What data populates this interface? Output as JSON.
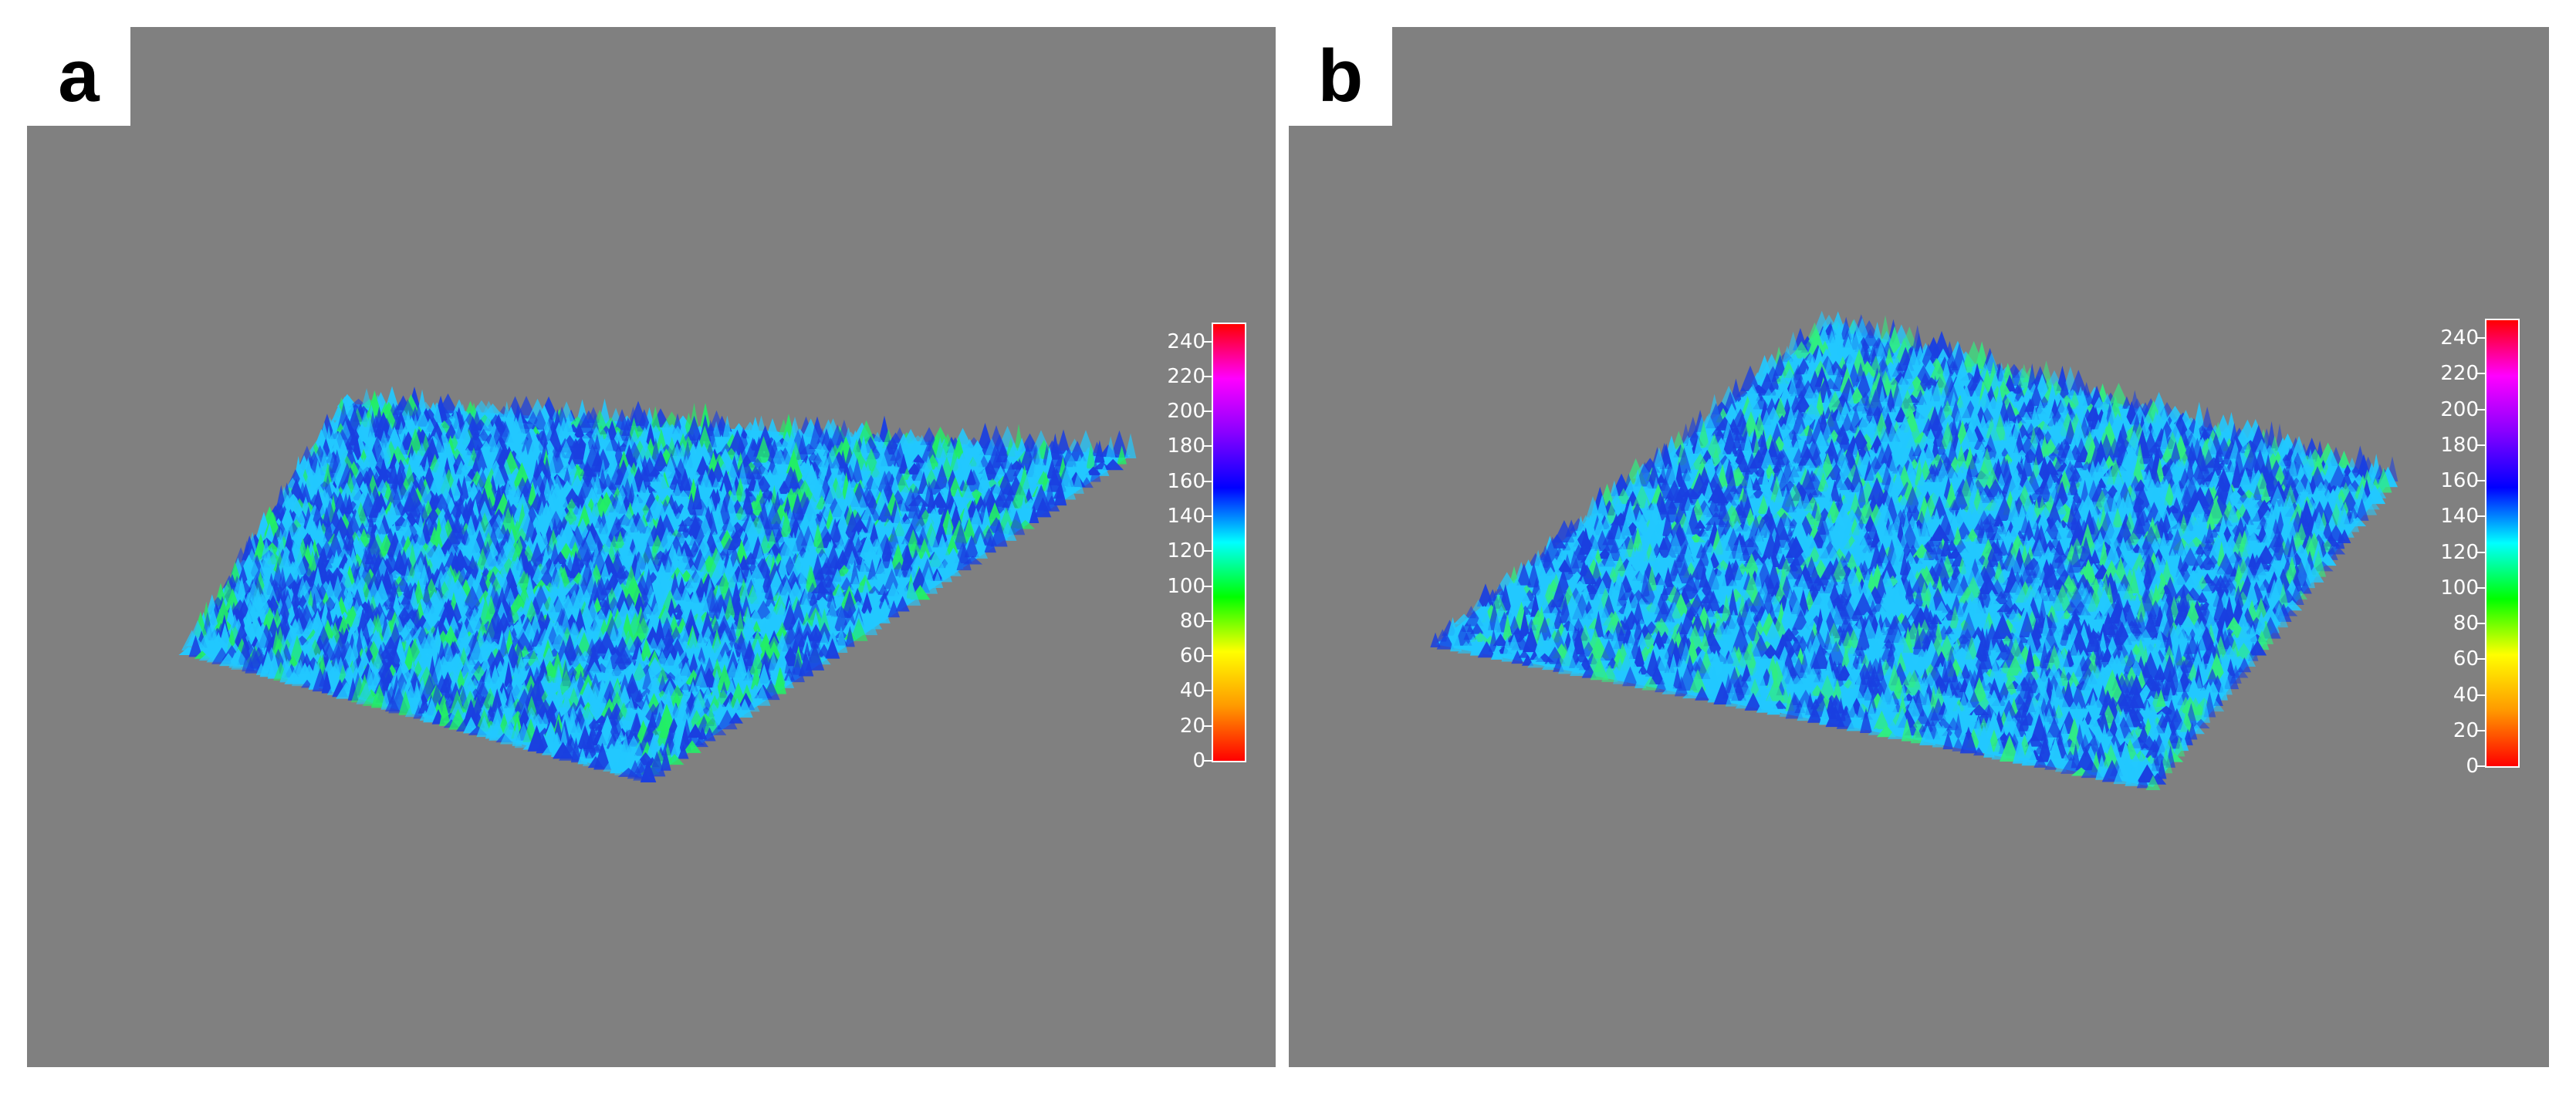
{
  "panels": [
    {
      "label": "a",
      "chart_data": {
        "type": "heatmap",
        "render": "3d-surface",
        "colorbar": {
          "min": 0,
          "max": 250,
          "ticks": [
            "0",
            "20",
            "40",
            "60",
            "80",
            "100",
            "120",
            "140",
            "160",
            "180",
            "200",
            "220",
            "240"
          ],
          "stops": [
            "#ff0000",
            "#ff9900",
            "#ffff00",
            "#00ff00",
            "#00ffff",
            "#0000ff",
            "#8800ff",
            "#ff00ff",
            "#ff0000"
          ]
        },
        "surface_colors": {
          "high": "#1a3fe0",
          "mid": "#22c8ff",
          "low": "#22ee66"
        },
        "dominant_range": [
          80,
          170
        ]
      }
    },
    {
      "label": "b",
      "chart_data": {
        "type": "heatmap",
        "render": "3d-surface",
        "colorbar": {
          "min": 0,
          "max": 250,
          "ticks": [
            "0",
            "20",
            "40",
            "60",
            "80",
            "100",
            "120",
            "140",
            "160",
            "180",
            "200",
            "220",
            "240"
          ],
          "stops": [
            "#ff0000",
            "#ff9900",
            "#ffff00",
            "#00ff00",
            "#00ffff",
            "#0000ff",
            "#8800ff",
            "#ff00ff",
            "#ff0000"
          ]
        },
        "surface_colors": {
          "high": "#1a3fe0",
          "mid": "#22c8ff",
          "low": "#30ee80"
        },
        "dominant_range": [
          90,
          165
        ]
      }
    }
  ]
}
